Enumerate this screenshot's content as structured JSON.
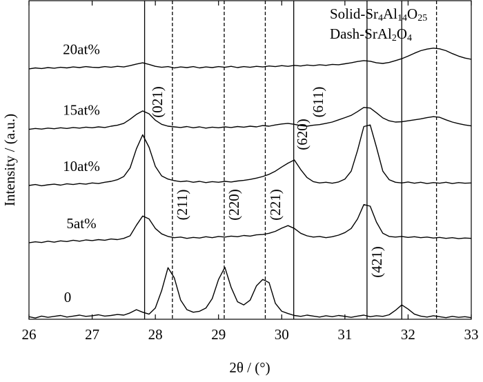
{
  "chart_data": {
    "type": "line",
    "x_label": "2θ / (°)",
    "y_label": "Intensity / (a.u.)",
    "xlim": [
      26,
      33
    ],
    "xticks": [
      26,
      27,
      28,
      29,
      30,
      31,
      32,
      33
    ],
    "ylim": [
      0,
      100
    ],
    "x": [
      26.0,
      26.1,
      26.2,
      26.3,
      26.4,
      26.5,
      26.6,
      26.7,
      26.8,
      26.9,
      27.0,
      27.1,
      27.2,
      27.3,
      27.4,
      27.5,
      27.6,
      27.7,
      27.8,
      27.9,
      28.0,
      28.1,
      28.2,
      28.3,
      28.4,
      28.5,
      28.6,
      28.7,
      28.8,
      28.9,
      29.0,
      29.1,
      29.2,
      29.3,
      29.4,
      29.5,
      29.6,
      29.7,
      29.8,
      29.9,
      30.0,
      30.1,
      30.2,
      30.3,
      30.4,
      30.5,
      30.6,
      30.7,
      30.8,
      30.9,
      31.0,
      31.1,
      31.2,
      31.3,
      31.4,
      31.5,
      31.6,
      31.7,
      31.8,
      31.9,
      32.0,
      32.1,
      32.2,
      32.3,
      32.4,
      32.5,
      32.6,
      32.7,
      32.8,
      32.9,
      33.0
    ],
    "series": [
      {
        "name": "0",
        "color": "#000000",
        "values": [
          0.8,
          0.4,
          1.0,
          0.6,
          0.9,
          1.2,
          0.7,
          1.0,
          1.3,
          0.9,
          1.1,
          1.4,
          1.0,
          1.2,
          1.5,
          1.3,
          2.0,
          3.0,
          2.2,
          1.6,
          3.5,
          9,
          16.2,
          13,
          6,
          3,
          2.2,
          2.5,
          3.5,
          6.5,
          12.5,
          16.3,
          10,
          5.5,
          4.5,
          6,
          10.5,
          12.5,
          11.5,
          5,
          2.5,
          1.8,
          1.2,
          0.9,
          1.3,
          1.0,
          0.7,
          1.1,
          0.8,
          1.2,
          0.9,
          0.6,
          1.0,
          1.3,
          0.8,
          1.1,
          0.9,
          1.4,
          2.8,
          4.5,
          3.2,
          1.6,
          1.0,
          0.7,
          1.1,
          0.8,
          0.5,
          0.9,
          0.6,
          0.8,
          0.5
        ]
      },
      {
        "name": "5at%",
        "color": "#000000",
        "values": [
          24.0,
          24.3,
          24.1,
          24.5,
          24.2,
          24.6,
          24.4,
          24.8,
          24.5,
          24.9,
          24.7,
          25.0,
          24.8,
          25.2,
          25.0,
          25.4,
          26.2,
          29.5,
          32.4,
          31.5,
          28.5,
          26.8,
          26.0,
          25.6,
          25.8,
          25.4,
          25.7,
          25.5,
          25.9,
          25.6,
          26.0,
          25.8,
          26.1,
          25.9,
          26.3,
          26.1,
          26.5,
          26.6,
          27.0,
          27.6,
          28.6,
          29.4,
          28.5,
          27.0,
          26.2,
          25.8,
          26.0,
          25.6,
          25.9,
          26.4,
          27.2,
          28.5,
          31.5,
          36.0,
          35.5,
          30.5,
          27.0,
          26.0,
          25.8,
          26.0,
          25.7,
          25.9,
          25.6,
          25.8,
          25.5,
          25.7,
          25.4,
          25.6,
          25.3,
          25.5,
          25.4
        ]
      },
      {
        "name": "10at%",
        "color": "#000000",
        "values": [
          42.0,
          42.3,
          41.9,
          42.2,
          42.4,
          42.1,
          42.5,
          42.3,
          42.6,
          42.4,
          42.8,
          42.6,
          43.0,
          43.3,
          43.8,
          44.8,
          47.5,
          53.5,
          57.9,
          54.0,
          48.0,
          45.0,
          44.0,
          43.5,
          43.2,
          43.4,
          43.0,
          43.3,
          42.9,
          43.2,
          43.0,
          43.3,
          43.1,
          43.4,
          43.6,
          43.9,
          44.3,
          44.8,
          45.5,
          46.5,
          47.8,
          49.0,
          50.0,
          47.0,
          44.5,
          43.2,
          42.8,
          43.0,
          42.7,
          43.1,
          44.0,
          46.5,
          53.0,
          60.5,
          61.0,
          54.0,
          46.5,
          43.8,
          43.0,
          42.8,
          43.1,
          42.7,
          43.0,
          42.6,
          42.9,
          42.7,
          43.0,
          42.6,
          42.9,
          42.7,
          42.8
        ]
      },
      {
        "name": "15at%",
        "color": "#000000",
        "values": [
          59.6,
          59.9,
          59.7,
          60.0,
          59.8,
          60.1,
          59.9,
          60.2,
          60.0,
          60.3,
          60.1,
          60.4,
          60.2,
          60.6,
          60.9,
          61.5,
          62.8,
          64.3,
          65.4,
          64.5,
          62.5,
          61.2,
          60.6,
          60.4,
          60.2,
          60.5,
          60.1,
          60.4,
          60.0,
          60.3,
          60.1,
          60.4,
          60.2,
          60.5,
          60.3,
          60.6,
          60.4,
          60.8,
          60.6,
          61.0,
          61.3,
          61.5,
          61.2,
          60.8,
          60.6,
          60.9,
          61.1,
          61.5,
          61.9,
          62.6,
          63.3,
          64.0,
          65.2,
          66.5,
          66.3,
          64.8,
          63.2,
          62.3,
          61.9,
          62.0,
          62.3,
          62.6,
          62.9,
          63.3,
          63.6,
          63.4,
          62.6,
          61.9,
          61.4,
          61.0,
          60.7
        ]
      },
      {
        "name": "20at%",
        "color": "#000000",
        "values": [
          78.6,
          78.9,
          78.7,
          79.0,
          78.8,
          79.1,
          78.9,
          79.2,
          79.0,
          79.3,
          79.1,
          79.0,
          79.3,
          79.1,
          79.4,
          79.2,
          79.6,
          80.1,
          80.5,
          80.0,
          79.4,
          79.1,
          79.3,
          78.9,
          79.2,
          79.0,
          79.3,
          78.9,
          79.2,
          79.0,
          79.3,
          79.1,
          79.4,
          79.0,
          79.3,
          79.1,
          79.4,
          79.2,
          79.5,
          79.3,
          79.6,
          79.4,
          79.7,
          79.5,
          79.8,
          79.6,
          79.9,
          79.7,
          80.0,
          79.9,
          80.2,
          80.5,
          80.9,
          81.2,
          81.0,
          80.5,
          80.3,
          80.6,
          81.2,
          81.8,
          82.6,
          83.5,
          84.3,
          84.8,
          85.1,
          84.9,
          84.3,
          83.4,
          82.6,
          82.0,
          81.6
        ]
      }
    ],
    "reference_lines": [
      {
        "x": 27.83,
        "style": "solid"
      },
      {
        "x": 30.19,
        "style": "solid"
      },
      {
        "x": 31.35,
        "style": "solid"
      },
      {
        "x": 31.9,
        "style": "solid"
      },
      {
        "x": 28.27,
        "style": "dashed"
      },
      {
        "x": 29.09,
        "style": "dashed"
      },
      {
        "x": 29.74,
        "style": "dashed"
      },
      {
        "x": 32.45,
        "style": "dashed"
      }
    ],
    "legend": [
      {
        "label": "Solid-Sr4Al14O25",
        "style": "solid"
      },
      {
        "label": "Dash-SrAl2O4",
        "style": "dashed"
      }
    ],
    "annotations": [
      "(021)",
      "(211)",
      "(220)",
      "(221)",
      "(620)",
      "(611)",
      "(421)"
    ]
  }
}
